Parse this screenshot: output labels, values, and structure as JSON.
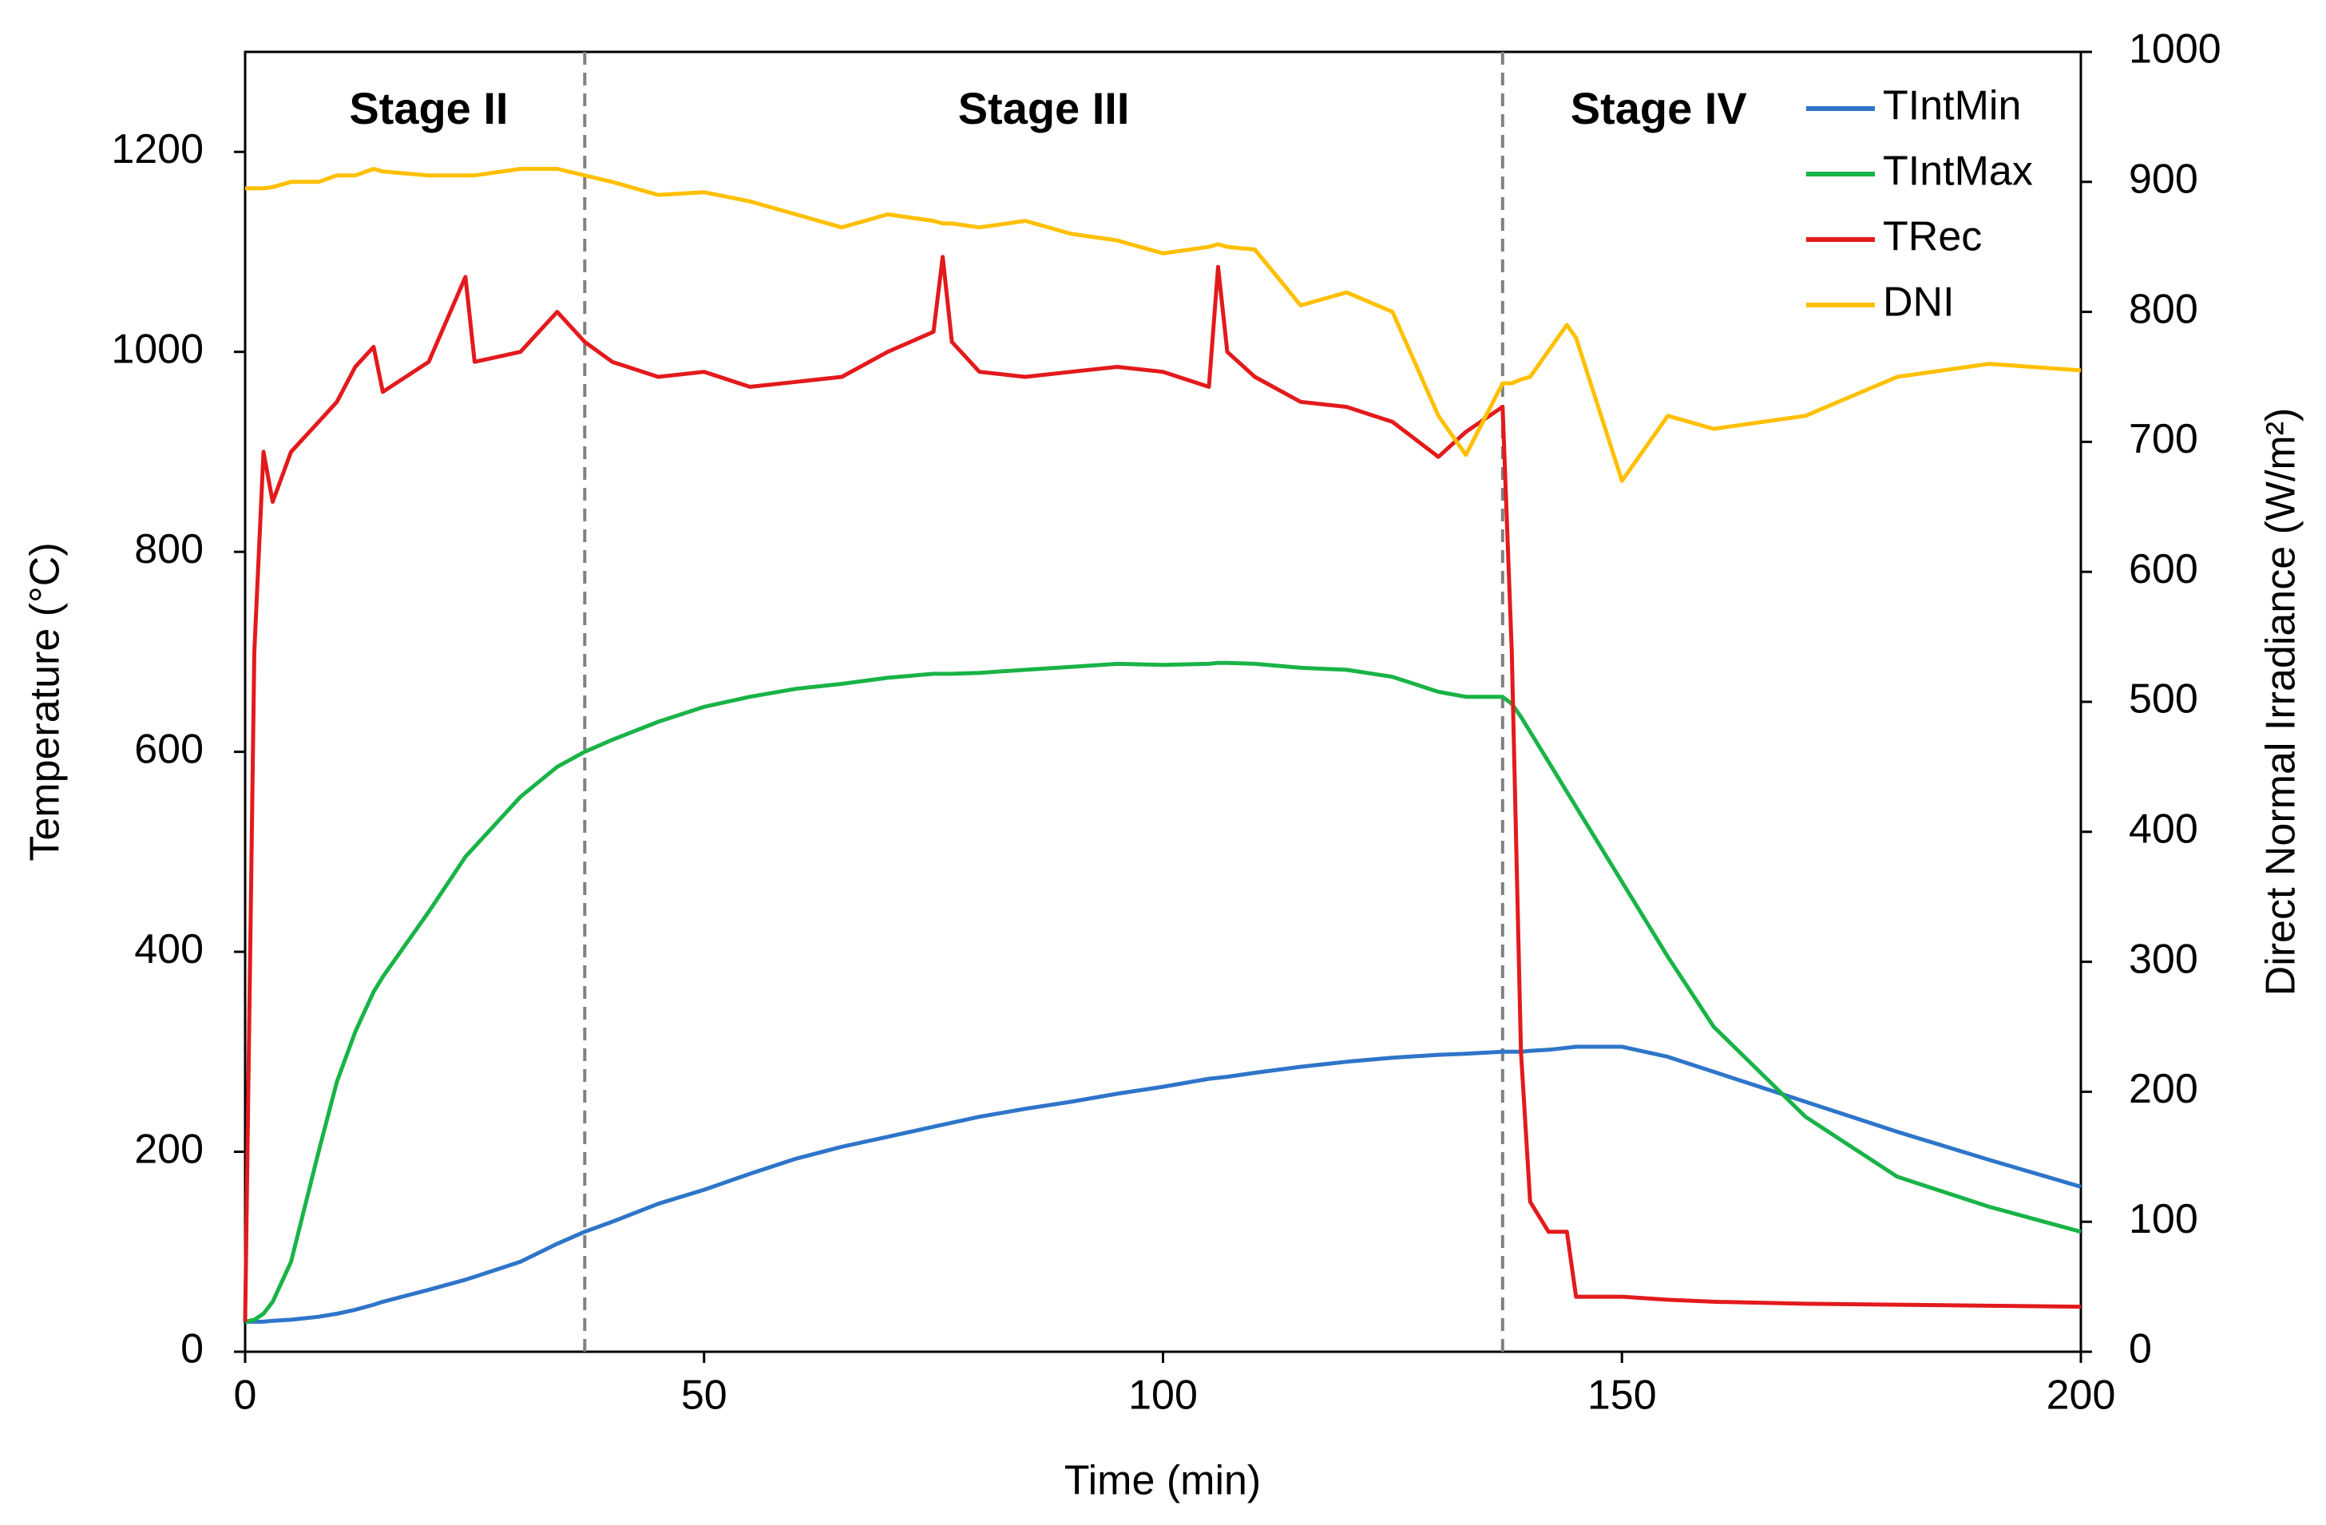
{
  "chart_data": {
    "type": "line",
    "xlabel": "Time (min)",
    "ylabel": "Temperature (°C)",
    "y2label": "Direct Normal Irradiance (W/m²)",
    "x": [
      0,
      1,
      2,
      3,
      5,
      8,
      10,
      12,
      14,
      15,
      20,
      24,
      25,
      30,
      34,
      37,
      40,
      45,
      50,
      55,
      60,
      65,
      70,
      75,
      76,
      77,
      80,
      85,
      90,
      95,
      100,
      105,
      106,
      107,
      110,
      115,
      120,
      125,
      130,
      133,
      137,
      138,
      139,
      140,
      142,
      144,
      145,
      150,
      155,
      160,
      170,
      180,
      190,
      200
    ],
    "series": [
      {
        "name": "TIntMin",
        "color": "#2e75c9",
        "values": [
          30,
          30,
          30,
          31,
          32,
          35,
          38,
          42,
          47,
          50,
          62,
          72,
          75,
          90,
          108,
          120,
          130,
          148,
          162,
          178,
          193,
          205,
          215,
          225,
          227,
          229,
          235,
          243,
          250,
          258,
          265,
          273,
          274,
          275,
          279,
          285,
          290,
          294,
          297,
          298,
          300,
          300,
          300,
          301,
          302,
          304,
          305,
          305,
          295,
          280,
          250,
          220,
          192,
          165
        ]
      },
      {
        "name": "TIntMax",
        "color": "#19b347",
        "values": [
          30,
          32,
          38,
          50,
          90,
          200,
          270,
          320,
          360,
          375,
          440,
          495,
          505,
          555,
          585,
          600,
          612,
          630,
          645,
          655,
          663,
          668,
          674,
          678,
          678,
          678,
          679,
          682,
          685,
          688,
          687,
          688,
          689,
          689,
          688,
          684,
          682,
          675,
          660,
          655,
          655,
          648,
          635,
          620,
          590,
          560,
          545,
          470,
          395,
          325,
          235,
          175,
          145,
          120
        ]
      },
      {
        "name": "TRec",
        "color": "#e31a1c",
        "values": [
          30,
          700,
          900,
          850,
          900,
          930,
          950,
          985,
          1005,
          960,
          990,
          1075,
          990,
          1000,
          1040,
          1010,
          990,
          975,
          980,
          965,
          970,
          975,
          1000,
          1020,
          1095,
          1010,
          980,
          975,
          980,
          985,
          980,
          965,
          1085,
          1000,
          975,
          950,
          945,
          930,
          895,
          920,
          945,
          700,
          300,
          150,
          120,
          120,
          55,
          55,
          52,
          50,
          48,
          47,
          46,
          45
        ]
      },
      {
        "name": "DNI",
        "color": "#ffc000",
        "axis": "y2",
        "values": [
          895,
          895,
          895,
          896,
          900,
          900,
          905,
          905,
          910,
          908,
          905,
          905,
          905,
          910,
          910,
          905,
          900,
          890,
          892,
          885,
          875,
          865,
          875,
          870,
          868,
          868,
          865,
          870,
          860,
          855,
          845,
          850,
          852,
          850,
          848,
          805,
          815,
          800,
          720,
          690,
          745,
          745,
          748,
          750,
          770,
          790,
          780,
          670,
          720,
          710,
          720,
          750,
          760,
          755
        ]
      }
    ],
    "xlim": [
      0,
      200
    ],
    "xticks": [
      0,
      50,
      100,
      150,
      200
    ],
    "ylim": [
      0,
      1300
    ],
    "yticks": [
      0,
      200,
      400,
      600,
      800,
      1000,
      1200
    ],
    "y2lim": [
      0,
      1000
    ],
    "y2ticks": [
      0,
      100,
      200,
      300,
      400,
      500,
      600,
      700,
      800,
      900,
      1000
    ],
    "vlines": [
      37,
      137
    ],
    "annotations": [
      {
        "text": "Stage II",
        "x": 20
      },
      {
        "text": "Stage III",
        "x": 87
      },
      {
        "text": "Stage IV",
        "x": 154
      }
    ],
    "grid": false,
    "legend": "top-right"
  }
}
